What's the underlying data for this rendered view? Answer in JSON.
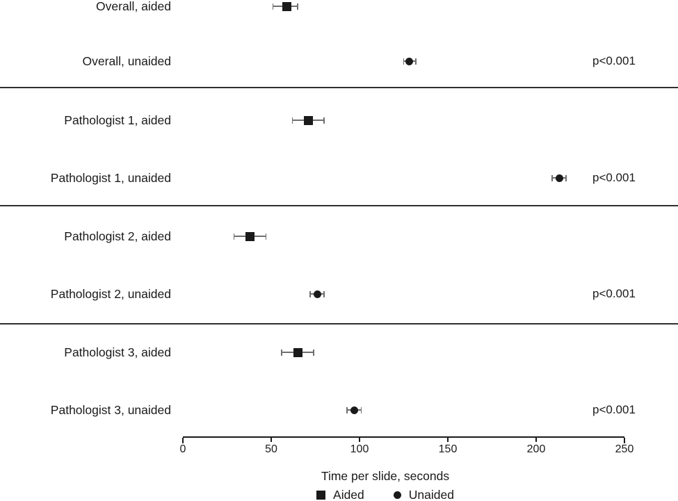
{
  "chart_data": {
    "type": "scatter",
    "subtype": "forest-dot-plot-with-error-bars",
    "xlabel": "Time per slide, seconds",
    "xlim": [
      0,
      250
    ],
    "xticks": [
      0,
      50,
      100,
      150,
      200,
      250
    ],
    "grid": false,
    "legend_position": "bottom-center",
    "legend": [
      {
        "label": "Aided",
        "marker": "square"
      },
      {
        "label": "Unaided",
        "marker": "circle"
      }
    ],
    "rows": [
      {
        "label": "Overall, aided",
        "marker": "square",
        "value": 59,
        "ci_low": 51,
        "ci_high": 65,
        "p": null
      },
      {
        "label": "Overall, unaided",
        "marker": "circle",
        "value": 128,
        "ci_low": 125,
        "ci_high": 132,
        "p": "p<0.001"
      },
      {
        "label": "Pathologist 1, aided",
        "marker": "square",
        "value": 71,
        "ci_low": 62,
        "ci_high": 80,
        "p": null
      },
      {
        "label": "Pathologist 1, unaided",
        "marker": "circle",
        "value": 213,
        "ci_low": 209,
        "ci_high": 217,
        "p": "p<0.001"
      },
      {
        "label": "Pathologist 2, aided",
        "marker": "square",
        "value": 38,
        "ci_low": 29,
        "ci_high": 47,
        "p": null
      },
      {
        "label": "Pathologist 2, unaided",
        "marker": "circle",
        "value": 76,
        "ci_low": 72,
        "ci_high": 80,
        "p": "p<0.001"
      },
      {
        "label": "Pathologist 3, aided",
        "marker": "square",
        "value": 65,
        "ci_low": 56,
        "ci_high": 74,
        "p": null
      },
      {
        "label": "Pathologist 3, unaided",
        "marker": "circle",
        "value": 97,
        "ci_low": 93,
        "ci_high": 101,
        "p": "p<0.001"
      }
    ],
    "group_dividers_after_row_index": [
      1,
      3,
      5
    ]
  },
  "colors": {
    "marker": "#1a1a1a",
    "error_bar": "#6e6e6e",
    "divider": "#2e2e2e",
    "axis": "#1a1a1a",
    "text": "#1a1a1a",
    "background": "#ffffff"
  }
}
